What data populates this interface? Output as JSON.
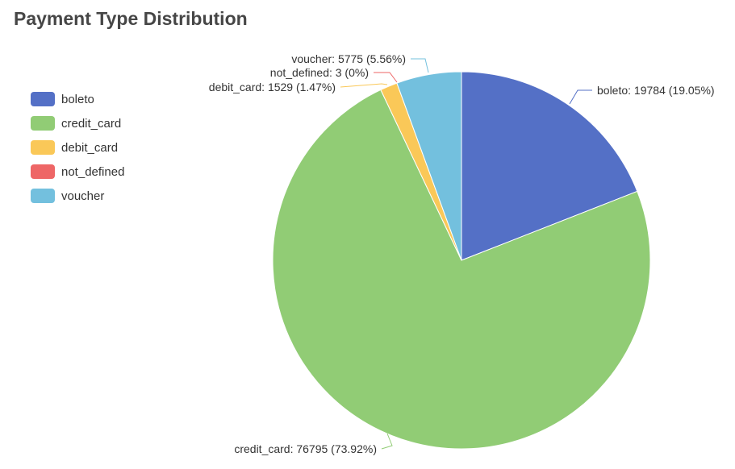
{
  "chart_data": {
    "type": "pie",
    "title": "Payment Type Distribution",
    "legend_position": "left",
    "slices": [
      {
        "name": "boleto",
        "value": 19784,
        "percent": "19.05%",
        "label": "boleto: 19784 (19.05%)",
        "color": "#5470c6"
      },
      {
        "name": "credit_card",
        "value": 76795,
        "percent": "73.92%",
        "label": "credit_card: 76795 (73.92%)",
        "color": "#91cc75"
      },
      {
        "name": "debit_card",
        "value": 1529,
        "percent": "1.47%",
        "label": "debit_card: 1529 (1.47%)",
        "color": "#fac858"
      },
      {
        "name": "not_defined",
        "value": 3,
        "percent": "0%",
        "label": "not_defined: 3 (0%)",
        "color": "#ee6666"
      },
      {
        "name": "voucher",
        "value": 5775,
        "percent": "5.56%",
        "label": "voucher: 5775 (5.56%)",
        "color": "#73c0de"
      }
    ]
  }
}
